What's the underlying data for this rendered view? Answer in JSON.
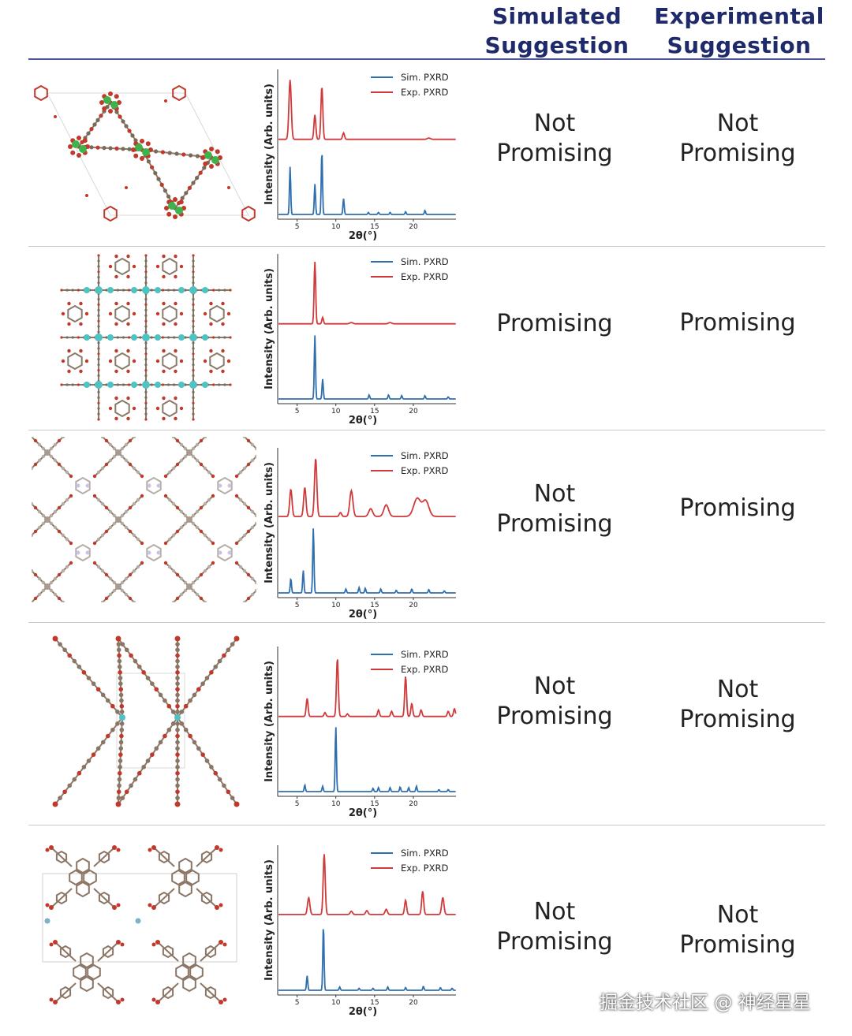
{
  "headers": {
    "simulated": [
      "Simulated",
      "Suggestion"
    ],
    "experimental": [
      "Experimental",
      "Suggestion"
    ]
  },
  "watermark": "掘金技术社区 @ 神经星星",
  "colors": {
    "sim_line": "#2f6fad",
    "exp_line": "#d03a3a",
    "header": "#1f2a6b",
    "atom_oxygen": "#c0392b",
    "atom_carbon": "#7a6a5a",
    "atom_metal_green": "#3cb44b",
    "atom_metal_cyan": "#4fc3c3"
  },
  "rows": [
    {
      "structure_icon": "mof-hexagonal-green-metal",
      "simulated": [
        "Not",
        "Promising"
      ],
      "experimental": [
        "Not",
        "Promising"
      ]
    },
    {
      "structure_icon": "mof-square-grid-cyan-metal",
      "simulated": [
        "Promising"
      ],
      "experimental": [
        "Promising"
      ]
    },
    {
      "structure_icon": "mof-rhombic-network-grey",
      "simulated": [
        "Not",
        "Promising"
      ],
      "experimental": [
        "Promising"
      ]
    },
    {
      "structure_icon": "mof-diamond-lattice-brown",
      "simulated": [
        "Not",
        "Promising"
      ],
      "experimental": [
        "Not",
        "Promising"
      ]
    },
    {
      "structure_icon": "mof-pyrene-linkers-brown",
      "simulated": [
        "Not",
        "Promising"
      ],
      "experimental": [
        "Not",
        "Promising"
      ]
    }
  ],
  "chart_data": [
    {
      "type": "line",
      "xlabel": "2θ(°)",
      "ylabel": "Intensity (Arb. units)",
      "xticks": [
        5,
        10,
        15,
        20
      ],
      "xlim": [
        2.5,
        25.5
      ],
      "legend": [
        "Sim. PXRD",
        "Exp. PXRD"
      ],
      "legend_placement": "top-right",
      "series": [
        {
          "name": "Exp. PXRD",
          "baseline": 0.04,
          "peaks": [
            [
              4.1,
              0.92,
              0.15
            ],
            [
              7.3,
              0.38,
              0.12
            ],
            [
              8.2,
              0.82,
              0.12
            ],
            [
              11.0,
              0.1,
              0.12
            ],
            [
              22.0,
              0.02,
              0.2
            ]
          ]
        },
        {
          "name": "Sim. PXRD",
          "baseline": 0.0,
          "peaks": [
            [
              4.1,
              0.72,
              0.08
            ],
            [
              7.3,
              0.46,
              0.08
            ],
            [
              8.2,
              0.96,
              0.08
            ],
            [
              11.0,
              0.24,
              0.08
            ],
            [
              14.2,
              0.03,
              0.08
            ],
            [
              15.5,
              0.03,
              0.08
            ],
            [
              17.0,
              0.03,
              0.08
            ],
            [
              19.0,
              0.04,
              0.08
            ],
            [
              21.5,
              0.06,
              0.08
            ]
          ]
        }
      ]
    },
    {
      "type": "line",
      "xlabel": "2θ(°)",
      "ylabel": "Intensity (Arb. units)",
      "xticks": [
        5,
        10,
        15,
        20
      ],
      "xlim": [
        2.5,
        25.5
      ],
      "legend": [
        "Sim. PXRD",
        "Exp. PXRD"
      ],
      "legend_placement": "top-right",
      "series": [
        {
          "name": "Exp. PXRD",
          "baseline": 0.04,
          "peaks": [
            [
              7.3,
              0.98,
              0.1
            ],
            [
              8.3,
              0.1,
              0.1
            ],
            [
              12.0,
              0.02,
              0.2
            ],
            [
              17.0,
              0.02,
              0.2
            ]
          ]
        },
        {
          "name": "Sim. PXRD",
          "baseline": 0.0,
          "peaks": [
            [
              7.3,
              0.96,
              0.08
            ],
            [
              8.3,
              0.3,
              0.08
            ],
            [
              14.3,
              0.06,
              0.08
            ],
            [
              16.8,
              0.06,
              0.08
            ],
            [
              18.5,
              0.05,
              0.08
            ],
            [
              21.5,
              0.05,
              0.08
            ],
            [
              24.5,
              0.03,
              0.08
            ]
          ]
        }
      ]
    },
    {
      "type": "line",
      "xlabel": "2θ(°)",
      "ylabel": "Intensity (Arb. units)",
      "xticks": [
        5,
        10,
        15,
        20
      ],
      "xlim": [
        2.5,
        25.5
      ],
      "legend": [
        "Sim. PXRD",
        "Exp. PXRD"
      ],
      "legend_placement": "top-right",
      "series": [
        {
          "name": "Exp. PXRD",
          "baseline": 0.06,
          "peaks": [
            [
              4.2,
              0.42,
              0.15
            ],
            [
              6.0,
              0.45,
              0.15
            ],
            [
              7.4,
              0.9,
              0.15
            ],
            [
              10.6,
              0.06,
              0.15
            ],
            [
              12.0,
              0.4,
              0.2
            ],
            [
              14.5,
              0.12,
              0.25
            ],
            [
              16.5,
              0.18,
              0.3
            ],
            [
              20.5,
              0.28,
              0.45
            ],
            [
              21.6,
              0.24,
              0.4
            ]
          ]
        },
        {
          "name": "Sim. PXRD",
          "baseline": 0.0,
          "peaks": [
            [
              4.2,
              0.22,
              0.08
            ],
            [
              5.8,
              0.34,
              0.08
            ],
            [
              7.1,
              0.98,
              0.08
            ],
            [
              11.3,
              0.06,
              0.08
            ],
            [
              13.0,
              0.08,
              0.08
            ],
            [
              13.8,
              0.07,
              0.08
            ],
            [
              15.8,
              0.06,
              0.08
            ],
            [
              17.8,
              0.04,
              0.08
            ],
            [
              19.8,
              0.06,
              0.08
            ],
            [
              22.0,
              0.05,
              0.08
            ],
            [
              24.0,
              0.03,
              0.08
            ]
          ]
        }
      ]
    },
    {
      "type": "line",
      "xlabel": "2θ(°)",
      "ylabel": "Intensity (Arb. units)",
      "xticks": [
        5,
        10,
        15,
        20
      ],
      "xlim": [
        2.5,
        25.5
      ],
      "legend": [
        "Sim. PXRD",
        "Exp. PXRD"
      ],
      "legend_placement": "top-right",
      "series": [
        {
          "name": "Exp. PXRD",
          "baseline": 0.04,
          "peaks": [
            [
              6.3,
              0.28,
              0.12
            ],
            [
              8.6,
              0.06,
              0.12
            ],
            [
              10.2,
              0.9,
              0.12
            ],
            [
              11.5,
              0.04,
              0.12
            ],
            [
              15.5,
              0.1,
              0.12
            ],
            [
              17.2,
              0.08,
              0.12
            ],
            [
              19.0,
              0.62,
              0.12
            ],
            [
              19.8,
              0.2,
              0.12
            ],
            [
              21.0,
              0.1,
              0.12
            ],
            [
              24.5,
              0.08,
              0.12
            ],
            [
              25.3,
              0.12,
              0.12
            ]
          ]
        },
        {
          "name": "Sim. PXRD",
          "baseline": 0.0,
          "peaks": [
            [
              6.0,
              0.1,
              0.08
            ],
            [
              8.3,
              0.08,
              0.08
            ],
            [
              10.0,
              0.98,
              0.08
            ],
            [
              14.8,
              0.05,
              0.08
            ],
            [
              15.5,
              0.06,
              0.08
            ],
            [
              17.0,
              0.06,
              0.08
            ],
            [
              18.3,
              0.07,
              0.08
            ],
            [
              19.4,
              0.06,
              0.08
            ],
            [
              20.4,
              0.08,
              0.08
            ],
            [
              23.3,
              0.03,
              0.08
            ],
            [
              24.5,
              0.03,
              0.08
            ]
          ]
        }
      ]
    },
    {
      "type": "line",
      "xlabel": "2θ(°)",
      "ylabel": "Intensity (Arb. units)",
      "xticks": [
        5,
        10,
        15,
        20
      ],
      "xlim": [
        2.5,
        25.5
      ],
      "legend": [
        "Sim. PXRD",
        "Exp. PXRD"
      ],
      "legend_placement": "top-right",
      "series": [
        {
          "name": "Exp. PXRD",
          "baseline": 0.05,
          "peaks": [
            [
              6.5,
              0.26,
              0.15
            ],
            [
              8.5,
              0.94,
              0.13
            ],
            [
              12.0,
              0.05,
              0.15
            ],
            [
              14.0,
              0.06,
              0.15
            ],
            [
              16.5,
              0.08,
              0.15
            ],
            [
              19.0,
              0.22,
              0.13
            ],
            [
              21.2,
              0.36,
              0.13
            ],
            [
              23.8,
              0.26,
              0.15
            ]
          ]
        },
        {
          "name": "Sim. PXRD",
          "baseline": 0.0,
          "peaks": [
            [
              6.3,
              0.22,
              0.08
            ],
            [
              8.4,
              0.98,
              0.08
            ],
            [
              10.5,
              0.05,
              0.08
            ],
            [
              13.0,
              0.03,
              0.08
            ],
            [
              14.8,
              0.03,
              0.08
            ],
            [
              16.7,
              0.05,
              0.08
            ],
            [
              19.0,
              0.04,
              0.08
            ],
            [
              21.3,
              0.06,
              0.08
            ],
            [
              23.5,
              0.04,
              0.08
            ],
            [
              25.0,
              0.03,
              0.08
            ]
          ]
        }
      ]
    }
  ]
}
